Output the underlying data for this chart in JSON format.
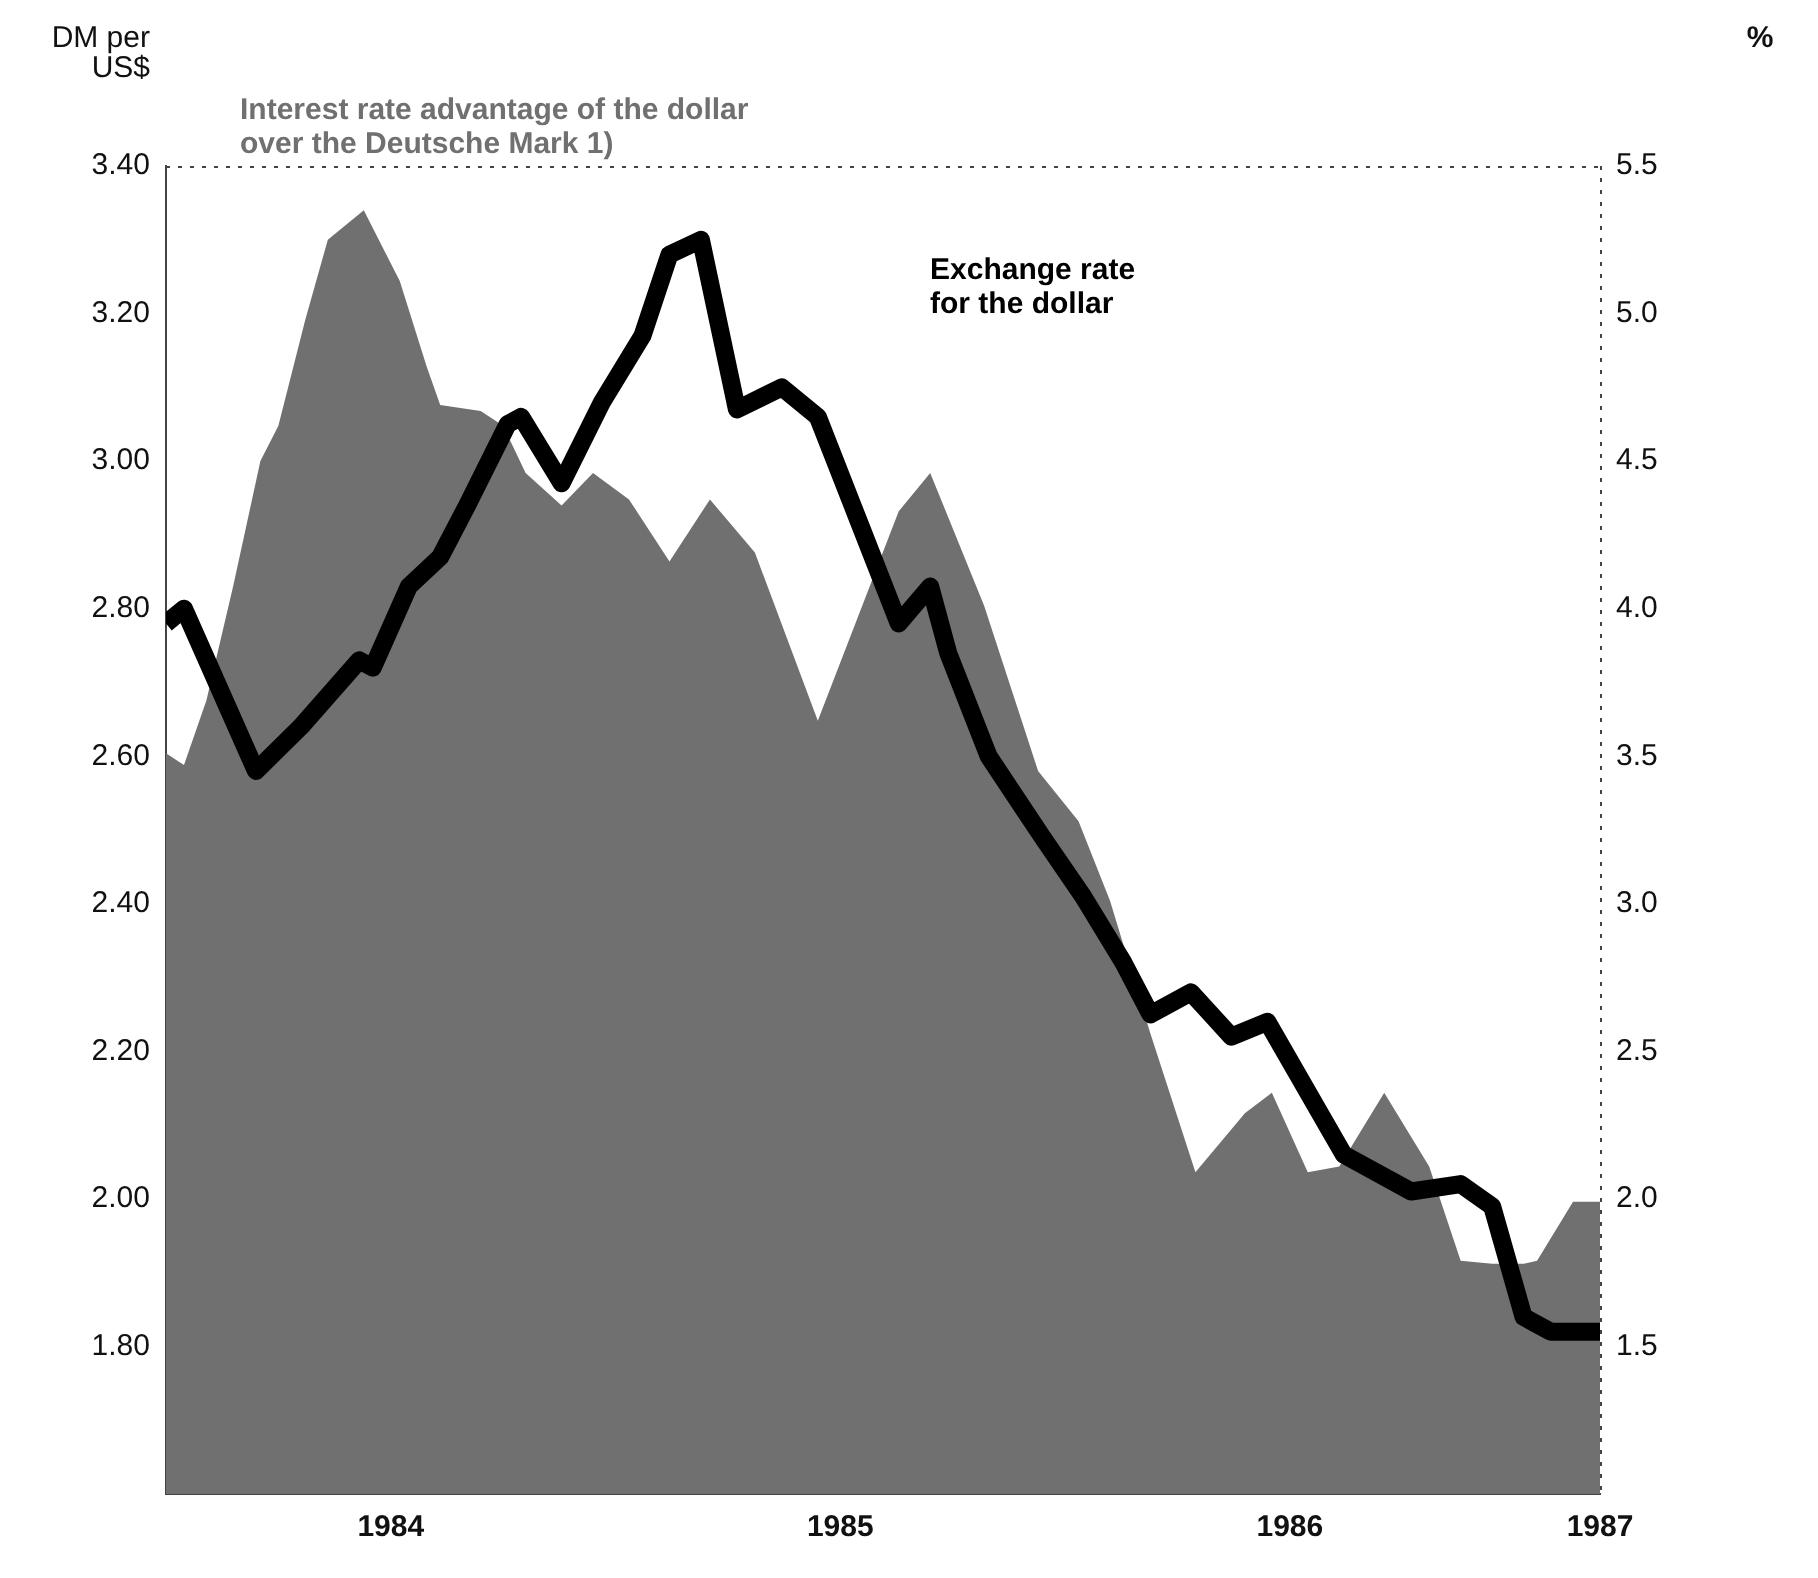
{
  "chart_data": {
    "type": "line",
    "ylabel": "DM per US$",
    "y2label": "%",
    "xlim": [
      1984.0,
      1987.19
    ],
    "xticks": [
      {
        "value": 1984.5,
        "label": "1984"
      },
      {
        "value": 1985.5,
        "label": "1985"
      },
      {
        "value": 1986.5,
        "label": "1986"
      },
      {
        "value": 1987.19,
        "label": "1987"
      }
    ],
    "ylim": [
      1.6,
      3.4
    ],
    "yticks": [
      {
        "value": 1.8,
        "label": "1.80"
      },
      {
        "value": 2.0,
        "label": "2.00"
      },
      {
        "value": 2.2,
        "label": "2.20"
      },
      {
        "value": 2.4,
        "label": "2.40"
      },
      {
        "value": 2.6,
        "label": "2.60"
      },
      {
        "value": 2.8,
        "label": "2.80"
      },
      {
        "value": 3.0,
        "label": "3.00"
      },
      {
        "value": 3.2,
        "label": "3.20"
      },
      {
        "value": 3.4,
        "label": "3.40"
      }
    ],
    "y2lim": [
      1.0,
      5.5
    ],
    "y2ticks": [
      1.5,
      {
        "value": 2.0,
        "label": "2.0"
      },
      2.5,
      {
        "value": 3.0,
        "label": "3.0"
      },
      3.5,
      {
        "value": 4.0,
        "label": "4.0"
      },
      4.5,
      {
        "value": 5.0,
        "label": "5.0"
      },
      5.5
    ],
    "grid": false,
    "legend": false,
    "series": [
      {
        "type": "area",
        "axis": "y2",
        "name": "Interest rate advantage of the dollar over the Deutsche Mark 1)",
        "color": "#707070",
        "x": [
          1984.0,
          1984.04,
          1984.09,
          1984.15,
          1984.21,
          1984.25,
          1984.31,
          1984.36,
          1984.44,
          1984.52,
          1984.58,
          1984.61,
          1984.7,
          1984.75,
          1984.8,
          1984.88,
          1984.95,
          1985.03,
          1985.12,
          1985.21,
          1985.31,
          1985.45,
          1985.63,
          1985.7,
          1985.82,
          1985.94,
          1986.03,
          1986.1,
          1986.19,
          1986.29,
          1986.4,
          1986.46,
          1986.54,
          1986.61,
          1986.71,
          1986.81,
          1986.88,
          1986.95,
          1987.02,
          1987.05,
          1987.13,
          1987.19
        ],
        "values": [
          3.51,
          3.47,
          3.69,
          4.08,
          4.5,
          4.62,
          4.98,
          5.25,
          5.35,
          5.11,
          4.82,
          4.69,
          4.67,
          4.62,
          4.46,
          4.35,
          4.46,
          4.37,
          4.16,
          4.37,
          4.19,
          3.62,
          4.33,
          4.46,
          4.01,
          3.45,
          3.28,
          3.01,
          2.56,
          2.09,
          2.29,
          2.36,
          2.09,
          2.11,
          2.36,
          2.11,
          1.79,
          1.78,
          1.78,
          1.79,
          1.99,
          1.99
        ]
      },
      {
        "type": "line",
        "name": "Exchange rate for the dollar",
        "color": "#000000",
        "x": [
          1984.0,
          1984.04,
          1984.2,
          1984.3,
          1984.43,
          1984.46,
          1984.54,
          1984.61,
          1984.67,
          1984.76,
          1984.79,
          1984.88,
          1984.97,
          1985.06,
          1985.12,
          1985.19,
          1985.27,
          1985.37,
          1985.45,
          1985.54,
          1985.63,
          1985.7,
          1985.74,
          1985.83,
          1985.95,
          1986.04,
          1986.13,
          1986.19,
          1986.28,
          1986.37,
          1986.45,
          1986.62,
          1986.77,
          1986.88,
          1986.95,
          1987.02,
          1987.08,
          1987.19
        ],
        "values": [
          2.78,
          2.8,
          2.58,
          2.64,
          2.73,
          2.72,
          2.83,
          2.87,
          2.94,
          3.05,
          3.06,
          2.97,
          3.08,
          3.17,
          3.28,
          3.3,
          3.07,
          3.1,
          3.06,
          2.92,
          2.78,
          2.83,
          2.74,
          2.6,
          2.49,
          2.41,
          2.32,
          2.25,
          2.28,
          2.22,
          2.24,
          2.06,
          2.01,
          2.02,
          1.99,
          1.84,
          1.82,
          1.82
        ]
      }
    ]
  }
}
